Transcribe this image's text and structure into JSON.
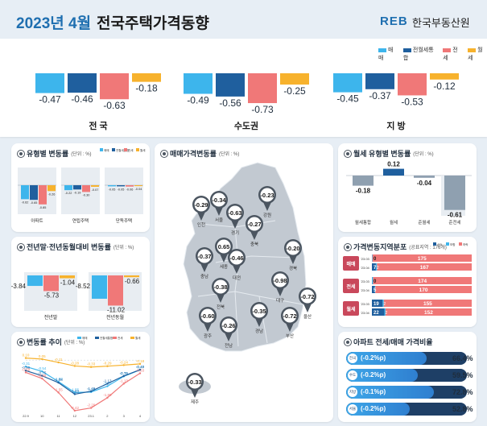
{
  "header": {
    "year_month": "2023년 4월",
    "title": "전국주택가격동향",
    "logo": "REB",
    "org": "한국부동산원"
  },
  "legend4": {
    "items": [
      "매매",
      "전월세통합",
      "전세",
      "월세"
    ],
    "colors": [
      "#3db5ec",
      "#1f5f9e",
      "#f07878",
      "#f7b22d"
    ]
  },
  "top": [
    {
      "name": "전 국",
      "values": [
        -0.47,
        -0.46,
        -0.63,
        -0.18
      ]
    },
    {
      "name": "수도권",
      "values": [
        -0.49,
        -0.56,
        -0.73,
        -0.25
      ]
    },
    {
      "name": "지 방",
      "values": [
        -0.45,
        -0.37,
        -0.53,
        -0.12
      ]
    }
  ],
  "type_panel": {
    "title": "유형별 변동률",
    "unit": "(단위 : %)",
    "legend": [
      "매매",
      "전월세통합",
      "전세",
      "월세"
    ],
    "groups": [
      {
        "name": "아파트",
        "values": [
          -0.62,
          -0.65,
          -0.85,
          -0.26
        ]
      },
      {
        "name": "연립주택",
        "values": [
          -0.22,
          -0.19,
          -0.3,
          -0.07
        ]
      },
      {
        "name": "단독주택",
        "values": [
          -0.05,
          -0.05,
          -0.06,
          -0.04
        ]
      }
    ]
  },
  "ytd_panel": {
    "title": "전년말·전년동월대비 변동률",
    "unit": "(단위 : %)",
    "groups": [
      {
        "name": "전년말",
        "values": [
          -3.84,
          -5.73,
          -1.04
        ]
      },
      {
        "name": "전년동월",
        "values": [
          -8.52,
          -11.02,
          -0.66
        ]
      }
    ]
  },
  "trend_panel": {
    "title": "변동률 추이",
    "unit": "(단위 : %)",
    "legend": [
      "매매",
      "전월세통합",
      "전세",
      "월세"
    ],
    "x": [
      "22.9",
      "10",
      "11",
      "12",
      "23.1",
      "2",
      "3",
      "4"
    ],
    "series": [
      {
        "name": "월세",
        "values": [
          0.1,
          0.05,
          -0.11,
          -0.28,
          -0.33,
          -0.29,
          -0.24,
          -0.18
        ]
      },
      {
        "name": "매매",
        "values": [
          -0.31,
          -0.54,
          -1.03,
          -1.55,
          -1.53,
          -1.25,
          -0.78,
          -0.47
        ]
      },
      {
        "name": "전월세통합",
        "values": [
          -0.5,
          -0.75,
          -1.08,
          -1.63,
          -1.49,
          -1.13,
          -0.76,
          -0.46
        ]
      },
      {
        "name": "전세",
        "values": [
          -0.59,
          -0.88,
          -1.55,
          -2.42,
          -2.29,
          -1.8,
          -1.13,
          -0.63
        ]
      }
    ]
  },
  "map_panel": {
    "title": "매매가격변동률",
    "unit": "(단위 : %)",
    "regions": [
      {
        "name": "인천",
        "value": "-0.29"
      },
      {
        "name": "서울",
        "value": "-0.34"
      },
      {
        "name": "경기",
        "value": "-0.63"
      },
      {
        "name": "강원",
        "value": "-0.23"
      },
      {
        "name": "충북",
        "value": "-0.27"
      },
      {
        "name": "세종",
        "value": "0.65"
      },
      {
        "name": "충남",
        "value": "-0.37"
      },
      {
        "name": "대전",
        "value": "-0.46"
      },
      {
        "name": "경북",
        "value": "-0.20"
      },
      {
        "name": "전북",
        "value": "-0.38"
      },
      {
        "name": "대구",
        "value": "-0.98"
      },
      {
        "name": "울산",
        "value": "-0.72"
      },
      {
        "name": "광주",
        "value": "-0.60"
      },
      {
        "name": "전남",
        "value": "-0.26"
      },
      {
        "name": "경남",
        "value": "-0.35"
      },
      {
        "name": "부산",
        "value": "-0.72"
      },
      {
        "name": "제주",
        "value": "-0.33"
      }
    ]
  },
  "monthly_panel": {
    "title": "월세 유형별 변동률",
    "unit": "(단위 : %)",
    "categories": [
      "월세통합",
      "월세",
      "준월세",
      "준전세"
    ],
    "values": [
      -0.18,
      0.12,
      -0.04,
      -0.61
    ]
  },
  "dist_panel": {
    "title": "가격변동지역분포",
    "unit": "(공표지역 : 176개)",
    "legend": [
      "상승",
      "보합",
      "하락"
    ],
    "colors": {
      "up": "#1f5f9e",
      "flat": "#3db5ec",
      "down": "#f07878"
    },
    "groups": [
      {
        "name": "매매",
        "rows": [
          {
            "period": "'23.03",
            "up": 0,
            "flat": 1,
            "down": 175,
            "up_label": "0",
            "down_label": "175"
          },
          {
            "period": "'23.04",
            "up": 7,
            "flat": 2,
            "down": 167,
            "up_label": "7",
            "flat_label": "2",
            "down_label": "167"
          }
        ]
      },
      {
        "name": "전세",
        "rows": [
          {
            "period": "'23.03",
            "up": 0,
            "flat": 2,
            "down": 174,
            "up_label": "0",
            "down_label": "174"
          },
          {
            "period": "'23.04",
            "up": 5,
            "flat": 1,
            "down": 170,
            "up_label": "5",
            "down_label": "170"
          }
        ]
      },
      {
        "name": "월세",
        "rows": [
          {
            "period": "'23.03",
            "up": 19,
            "flat": 2,
            "down": 155,
            "up_label": "19",
            "flat_label": "2",
            "down_label": "155"
          },
          {
            "period": "'23.04",
            "up": 22,
            "flat": 2,
            "down": 152,
            "up_label": "22",
            "flat_label": "2",
            "down_label": "152"
          }
        ]
      }
    ]
  },
  "ratio_panel": {
    "title": "아파트 전세/매매 가격비율",
    "rows": [
      {
        "tag": "전국",
        "change": "(-0.2%p)",
        "value": 66.4,
        "label": "66.4%"
      },
      {
        "tag": "수도권",
        "change": "(-0.2%p)",
        "value": 59.5,
        "label": "59.5%"
      },
      {
        "tag": "지방",
        "change": "(-0.1%p)",
        "value": 72.8,
        "label": "72.8%"
      },
      {
        "tag": "서울",
        "change": "(-0.2%p)",
        "value": 52.8,
        "label": "52.8%"
      }
    ]
  },
  "chart_data": [
    {
      "type": "bar",
      "title": "",
      "categories": [
        "전 국",
        "수도권",
        "지 방"
      ],
      "series": [
        {
          "name": "매매",
          "values": [
            -0.47,
            -0.49,
            -0.45
          ]
        },
        {
          "name": "전월세통합",
          "values": [
            -0.46,
            -0.56,
            -0.37
          ]
        },
        {
          "name": "전세",
          "values": [
            -0.63,
            -0.73,
            -0.53
          ]
        },
        {
          "name": "월세",
          "values": [
            -0.18,
            -0.25,
            -0.12
          ]
        }
      ]
    },
    {
      "type": "bar",
      "title": "유형별 변동률",
      "categories": [
        "아파트",
        "연립주택",
        "단독주택"
      ],
      "series": [
        {
          "name": "매매",
          "values": [
            -0.62,
            -0.22,
            -0.05
          ]
        },
        {
          "name": "전월세통합",
          "values": [
            -0.65,
            -0.19,
            -0.05
          ]
        },
        {
          "name": "전세",
          "values": [
            -0.85,
            -0.3,
            -0.06
          ]
        },
        {
          "name": "월세",
          "values": [
            -0.26,
            -0.07,
            -0.04
          ]
        }
      ]
    },
    {
      "type": "bar",
      "title": "전년말·전년동월대비 변동률",
      "categories": [
        "전년말",
        "전년동월"
      ],
      "series": [
        {
          "name": "매매",
          "values": [
            -3.84,
            -8.52
          ]
        },
        {
          "name": "전세",
          "values": [
            -5.73,
            -11.02
          ]
        },
        {
          "name": "월세",
          "values": [
            -1.04,
            -0.66
          ]
        }
      ]
    },
    {
      "type": "line",
      "title": "변동률 추이",
      "x": [
        "22.9",
        "10",
        "11",
        "12",
        "23.1",
        "2",
        "3",
        "4"
      ],
      "series": [
        {
          "name": "매매",
          "values": [
            -0.31,
            -0.54,
            -1.03,
            -1.55,
            -1.53,
            -1.25,
            -0.78,
            -0.47
          ]
        },
        {
          "name": "전월세통합",
          "values": [
            -0.5,
            -0.75,
            -1.08,
            -1.63,
            -1.49,
            -1.13,
            -0.76,
            -0.46
          ]
        },
        {
          "name": "전세",
          "values": [
            -0.59,
            -0.88,
            -1.55,
            -2.42,
            -2.29,
            -1.8,
            -1.13,
            -0.63
          ]
        },
        {
          "name": "월세",
          "values": [
            0.1,
            0.05,
            -0.11,
            -0.28,
            -0.33,
            -0.29,
            -0.24,
            -0.18
          ]
        }
      ]
    },
    {
      "type": "bar",
      "title": "월세 유형별 변동률",
      "categories": [
        "월세통합",
        "월세",
        "준월세",
        "준전세"
      ],
      "values": [
        -0.18,
        0.12,
        -0.04,
        -0.61
      ]
    }
  ]
}
